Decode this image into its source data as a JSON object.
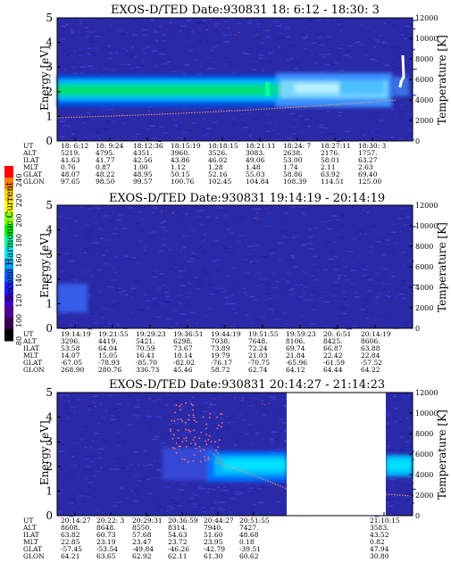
{
  "colors": {
    "background": "#2a2aa8",
    "band_core": "#00e070",
    "band_cyan": "#00d8ff",
    "band_light": "#3aa0ff",
    "temperature_trace": "#ff9a6a"
  },
  "colorbar": {
    "label": "Second Harmonic Current",
    "ticks": [
      "240",
      "220",
      "200",
      "180",
      "160",
      "140",
      "120",
      "100",
      "80"
    ],
    "colors": [
      "#ff0000",
      "#ff8000",
      "#ffd000",
      "#ffff00",
      "#80ff00",
      "#00ff00",
      "#00ffa0",
      "#00e8ff",
      "#00a0ff",
      "#0060ff",
      "#2020ff",
      "#4000c8",
      "#500090",
      "#380050",
      "#000000"
    ]
  },
  "panels": [
    {
      "title": "EXOS-D/TED   Date:930831   18: 6:12 - 18:30: 3",
      "ylabel": "Energy [eV]",
      "y2label": "Temperature [K]",
      "ylim": [
        0,
        5
      ],
      "y2lim": [
        0,
        12000
      ],
      "yticks": [
        "0",
        "1",
        "2",
        "3",
        "4",
        "5"
      ],
      "y2ticks": [
        "0",
        "2000",
        "4000",
        "6000",
        "8000",
        "10000",
        "12000"
      ],
      "chart_data": {
        "type": "heatmap",
        "rows": [
          "UT",
          "ALT",
          "ILAT",
          "MLT",
          "GLAT",
          "GLON"
        ],
        "columns": [
          [
            "18: 6:12",
            "5219.",
            "41.63",
            "0.76",
            "48.07",
            "97.65"
          ],
          [
            "18: 9:24",
            "4795.",
            "41.77",
            "0.87",
            "48.22",
            "98.50"
          ],
          [
            "18:12:36",
            "4351.",
            "42.56",
            "1.00",
            "48.95",
            "99.57"
          ],
          [
            "18:15:19",
            "3960.",
            "43.86",
            "1.12",
            "50.15",
            "100.76"
          ],
          [
            "18:18:15",
            "3526.",
            "46.02",
            "1.28",
            "52.16",
            "102.45"
          ],
          [
            "18:21:11",
            "3083.",
            "49.06",
            "1.48",
            "55.03",
            "104.84"
          ],
          [
            "18:24: 7",
            "2638.",
            "53.00",
            "1.74",
            "58.86",
            "108.39"
          ],
          [
            "18:27:11",
            "2176.",
            "58.01",
            "2.11",
            "63.92",
            "114.51"
          ],
          [
            "18:30: 3",
            "1757.",
            "63.27",
            "2.63",
            "69.40",
            "125.00"
          ]
        ]
      }
    },
    {
      "title": "EXOS-D/TED   Date:930831   19:14:19 - 20:14:19",
      "ylabel": "Energy [eV]",
      "y2label": "Temperature [K]",
      "ylim": [
        0,
        5
      ],
      "y2lim": [
        0,
        12000
      ],
      "yticks": [
        "0",
        "1",
        "2",
        "3",
        "4",
        "5"
      ],
      "y2ticks": [
        "0",
        "2000",
        "4000",
        "6000",
        "8000",
        "10000",
        "12000"
      ],
      "chart_data": {
        "type": "heatmap",
        "rows": [
          "UT",
          "ALT",
          "ILAT",
          "MLT",
          "GLAT",
          "GLON"
        ],
        "columns": [
          [
            "19:14:19",
            "3296.",
            "53.58",
            "14.07",
            "-67.05",
            "268.90"
          ],
          [
            "19:21:55",
            "4419.",
            "64.04",
            "15.05",
            "-78.93",
            "280.76"
          ],
          [
            "19:29:23",
            "5421.",
            "70.59",
            "16.41",
            "-85.70",
            "336.73"
          ],
          [
            "19:36:51",
            "6298.",
            "73.67",
            "18.14",
            "-82.02",
            "45.46"
          ],
          [
            "19:44:19",
            "7038.",
            "73.89",
            "19.79",
            "-76.17",
            "58.72"
          ],
          [
            "19:51:55",
            "7648.",
            "72.24",
            "21.03",
            "-70.75",
            "62.74"
          ],
          [
            "19:59:23",
            "8106.",
            "69.74",
            "21.84",
            "-65.96",
            "64.12"
          ],
          [
            "20: 6:51",
            "8425.",
            "66.87",
            "22.42",
            "-61.59",
            "64.44"
          ],
          [
            "20:14:19",
            "8606.",
            "63.88",
            "22.84",
            "-57.52",
            "64.22"
          ]
        ]
      }
    },
    {
      "title": "EXOS-D/TED   Date:930831   20:14:27 - 21:14:23",
      "ylabel": "Energy [eV]",
      "y2label": "Temperature [K]",
      "ylim": [
        0,
        5
      ],
      "y2lim": [
        0,
        12000
      ],
      "yticks": [
        "0",
        "1",
        "2",
        "3",
        "4",
        "5"
      ],
      "y2ticks": [
        "0",
        "2000",
        "4000",
        "6000",
        "8000",
        "10000",
        "12000"
      ],
      "chart_data": {
        "type": "heatmap",
        "rows": [
          "UT",
          "ALT",
          "ILAT",
          "MLT",
          "GLAT",
          "GLON"
        ],
        "columns": [
          [
            "20:14:27",
            "8608.",
            "63.82",
            "22.85",
            "-57.45",
            "64.21"
          ],
          [
            "20:22: 3",
            "8648.",
            "60.73",
            "23.19",
            "-53.54",
            "63.65"
          ],
          [
            "20:29:31",
            "8550.",
            "57.68",
            "23.47",
            "-49.84",
            "62.92"
          ],
          [
            "20:36:59",
            "8314.",
            "54.63",
            "23.72",
            "-46.26",
            "62.11"
          ],
          [
            "20:44:27",
            "7940.",
            "51.60",
            "23.95",
            "-42.79",
            "61.30"
          ],
          [
            "20:51:55",
            "7427.",
            "48.68",
            "0.18",
            "-39.51",
            "60.62"
          ],
          [
            "21:10:15",
            "3583.",
            "43.52",
            "0.82",
            "47.94",
            "30.80"
          ]
        ]
      }
    }
  ]
}
